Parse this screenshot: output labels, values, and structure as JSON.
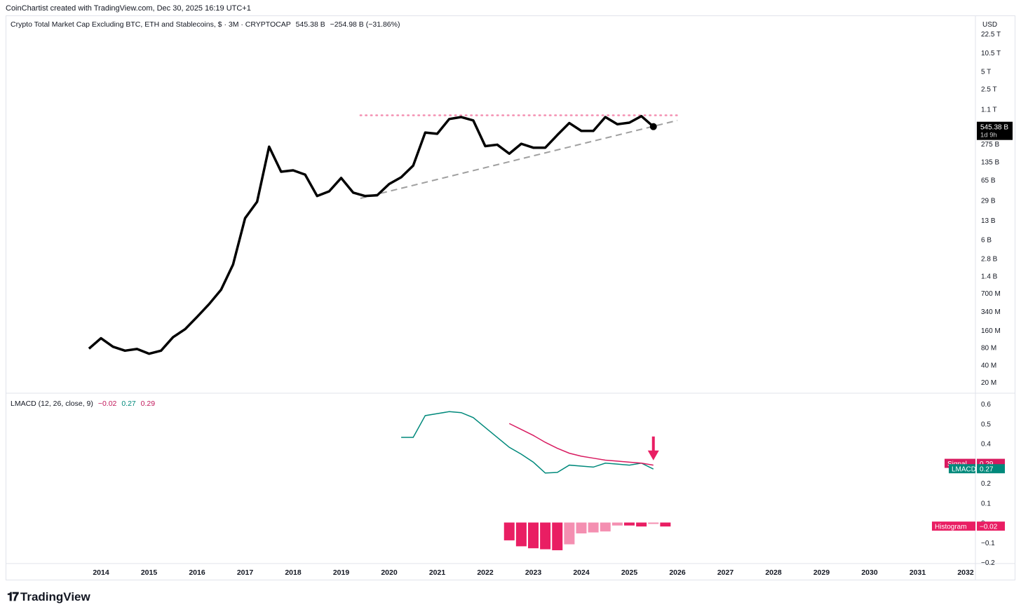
{
  "attribution": "CoinChartist created with TradingView.com, Dec 30, 2025 16:19 UTC+1",
  "main_legend": {
    "title": "Crypto Total Market Cap Excluding BTC, ETH and Stablecoins, $ · 3M · CRYPTOCAP",
    "price": "545.38 B",
    "change": "−254.98 B (−31.86%)"
  },
  "lmacd_legend": {
    "name": "LMACD (12, 26, close, 9)",
    "hist": "−0.02",
    "lmacd": "0.27",
    "signal": "0.29"
  },
  "currency_label": "USD",
  "price_tag": {
    "value": "545.38 B",
    "countdown": "1d 9h"
  },
  "brand": "TradingView",
  "colors": {
    "price_line": "#000000",
    "lmacd": "#00897b",
    "signal": "#d81b60",
    "hist_strong": "#e91e63",
    "hist_weak": "#f48fb1",
    "resistance": "#f48fb1",
    "trendline": "#a0a0a0",
    "arrow": "#e91e63"
  },
  "chart_data": [
    {
      "type": "line",
      "title": "Crypto Total Market Cap Excluding BTC, ETH and Stablecoins",
      "yscale": "log",
      "y_tick_labels": [
        "22.5 T",
        "10.5 T",
        "5 T",
        "2.5 T",
        "1.1 T",
        "545.38 B",
        "275 B",
        "135 B",
        "65 B",
        "29 B",
        "13 B",
        "6 B",
        "2.8 B",
        "1.4 B",
        "700 M",
        "340 M",
        "160 M",
        "80 M",
        "40 M",
        "20 M"
      ],
      "y_ticks": [
        {
          "label": "22.5 T",
          "value": 22500000000000.0
        },
        {
          "label": "10.5 T",
          "value": 10500000000000.0
        },
        {
          "label": "5 T",
          "value": 5000000000000.0
        },
        {
          "label": "2.5 T",
          "value": 2500000000000.0
        },
        {
          "label": "1.1 T",
          "value": 1100000000000.0
        },
        {
          "label": "275 B",
          "value": 275000000000.0
        },
        {
          "label": "135 B",
          "value": 135000000000.0
        },
        {
          "label": "65 B",
          "value": 65000000000.0
        },
        {
          "label": "29 B",
          "value": 29000000000.0
        },
        {
          "label": "13 B",
          "value": 13000000000.0
        },
        {
          "label": "6 B",
          "value": 6000000000.0
        },
        {
          "label": "2.8 B",
          "value": 2800000000.0
        },
        {
          "label": "1.4 B",
          "value": 1400000000.0
        },
        {
          "label": "700 M",
          "value": 700000000.0
        },
        {
          "label": "340 M",
          "value": 340000000.0
        },
        {
          "label": "160 M",
          "value": 160000000.0
        },
        {
          "label": "80 M",
          "value": 80000000.0
        },
        {
          "label": "40 M",
          "value": 40000000.0
        },
        {
          "label": "20 M",
          "value": 20000000.0
        }
      ],
      "x_tick_labels": [
        "2014",
        "2015",
        "2016",
        "2017",
        "2018",
        "2019",
        "2020",
        "2021",
        "2022",
        "2023",
        "2024",
        "2025",
        "2026",
        "2027",
        "2028",
        "2029",
        "2030",
        "2031",
        "2032"
      ],
      "series": [
        {
          "points": [
            [
              2013.75,
              76000000.0
            ],
            [
              2014.0,
              115000000.0
            ],
            [
              2014.25,
              82000000.0
            ],
            [
              2014.5,
              70000000.0
            ],
            [
              2014.75,
              75000000.0
            ],
            [
              2015.0,
              62000000.0
            ],
            [
              2015.25,
              70000000.0
            ],
            [
              2015.5,
              120000000.0
            ],
            [
              2015.75,
              165000000.0
            ],
            [
              2016.0,
              270000000.0
            ],
            [
              2016.25,
              450000000.0
            ],
            [
              2016.5,
              800000000.0
            ],
            [
              2016.75,
              2200000000.0
            ],
            [
              2017.0,
              14000000000.0
            ],
            [
              2017.25,
              27000000000.0
            ],
            [
              2017.5,
              245000000000.0
            ],
            [
              2017.75,
              90000000000.0
            ],
            [
              2018.0,
              95000000000.0
            ],
            [
              2018.25,
              80000000000.0
            ],
            [
              2018.5,
              34000000000.0
            ],
            [
              2018.75,
              41000000000.0
            ],
            [
              2019.0,
              70000000000.0
            ],
            [
              2019.25,
              39000000000.0
            ],
            [
              2019.5,
              34000000000.0
            ],
            [
              2019.75,
              35000000000.0
            ],
            [
              2020.0,
              55000000000.0
            ],
            [
              2020.25,
              72000000000.0
            ],
            [
              2020.5,
              115000000000.0
            ],
            [
              2020.75,
              430000000000.0
            ],
            [
              2021.0,
              410000000000.0
            ],
            [
              2021.25,
              740000000000.0
            ],
            [
              2021.5,
              800000000000.0
            ],
            [
              2021.75,
              700000000000.0
            ],
            [
              2022.0,
              250000000000.0
            ],
            [
              2022.25,
              265000000000.0
            ],
            [
              2022.5,
              185000000000.0
            ],
            [
              2022.75,
              275000000000.0
            ],
            [
              2023.0,
              235000000000.0
            ],
            [
              2023.25,
              235000000000.0
            ],
            [
              2023.5,
              390000000000.0
            ],
            [
              2023.75,
              630000000000.0
            ],
            [
              2024.0,
              460000000000.0
            ],
            [
              2024.25,
              460000000000.0
            ],
            [
              2024.5,
              800000000000.0
            ],
            [
              2024.75,
              600000000000.0
            ],
            [
              2025.0,
              640000000000.0
            ],
            [
              2025.25,
              830000000000.0
            ],
            [
              2025.5,
              545380000000.0
            ]
          ]
        }
      ],
      "annotations": [
        {
          "kind": "horizontal-dotted-line",
          "y": 860000000000.0,
          "x_from": 2019.4,
          "x_to": 2026.0
        },
        {
          "kind": "dashed-trendline",
          "from": [
            2019.4,
            31000000000.0
          ],
          "to": [
            2026.0,
            700000000000.0
          ]
        }
      ]
    },
    {
      "type": "line",
      "title": "LMACD (12, 26, close, 9)",
      "ylim": [
        -0.2,
        0.6
      ],
      "y_tick_labels": [
        "0.6",
        "0.5",
        "0.4",
        "0.3",
        "0.2",
        "0.1",
        "0",
        "−0.1",
        "−0.2"
      ],
      "series": [
        {
          "name": "LMACD",
          "points": [
            [
              2020.25,
              0.43
            ],
            [
              2020.5,
              0.43
            ],
            [
              2020.75,
              0.54
            ],
            [
              2021.0,
              0.55
            ],
            [
              2021.25,
              0.56
            ],
            [
              2021.5,
              0.555
            ],
            [
              2021.75,
              0.53
            ],
            [
              2022.0,
              0.48
            ],
            [
              2022.25,
              0.43
            ],
            [
              2022.5,
              0.38
            ],
            [
              2022.75,
              0.345
            ],
            [
              2023.0,
              0.305
            ],
            [
              2023.25,
              0.25
            ],
            [
              2023.5,
              0.253
            ],
            [
              2023.75,
              0.29
            ],
            [
              2024.0,
              0.285
            ],
            [
              2024.25,
              0.28
            ],
            [
              2024.5,
              0.3
            ],
            [
              2024.75,
              0.295
            ],
            [
              2025.0,
              0.29
            ],
            [
              2025.25,
              0.3
            ],
            [
              2025.5,
              0.27
            ]
          ]
        },
        {
          "name": "Signal",
          "points": [
            [
              2022.5,
              0.5
            ],
            [
              2022.75,
              0.47
            ],
            [
              2023.0,
              0.44
            ],
            [
              2023.25,
              0.405
            ],
            [
              2023.5,
              0.375
            ],
            [
              2023.75,
              0.35
            ],
            [
              2024.0,
              0.335
            ],
            [
              2024.25,
              0.325
            ],
            [
              2024.5,
              0.315
            ],
            [
              2024.75,
              0.31
            ],
            [
              2025.0,
              0.305
            ],
            [
              2025.25,
              0.3
            ],
            [
              2025.5,
              0.29
            ]
          ]
        },
        {
          "name": "Histogram",
          "type": "bar",
          "points": [
            [
              2022.5,
              -0.09
            ],
            [
              2022.75,
              -0.12
            ],
            [
              2023.0,
              -0.13
            ],
            [
              2023.25,
              -0.135
            ],
            [
              2023.5,
              -0.14
            ],
            [
              2023.75,
              -0.11
            ],
            [
              2024.0,
              -0.055
            ],
            [
              2024.25,
              -0.05
            ],
            [
              2024.5,
              -0.045
            ],
            [
              2024.75,
              -0.015
            ],
            [
              2025.0,
              -0.015
            ],
            [
              2025.25,
              -0.02
            ],
            [
              2025.5,
              -0.005
            ],
            [
              2025.75,
              -0.02
            ]
          ]
        }
      ],
      "labels": [
        {
          "text": "Signal",
          "value": "0.29"
        },
        {
          "text": "LMACD",
          "value": "0.27"
        },
        {
          "text": "Histogram",
          "value": "−0.02"
        }
      ],
      "annotations": [
        {
          "kind": "down-arrow",
          "x": 2025.5,
          "y": 0.3
        }
      ]
    }
  ]
}
